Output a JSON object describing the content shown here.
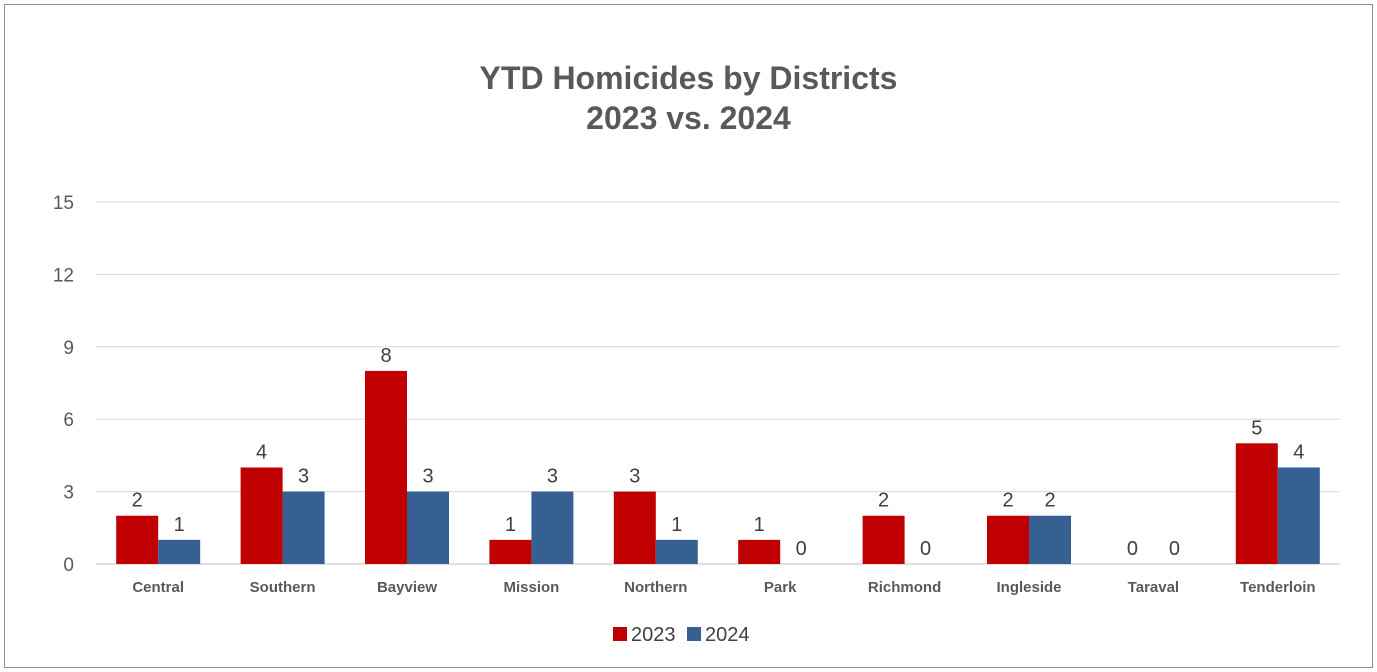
{
  "chart_data": {
    "type": "bar",
    "title": [
      "YTD Homicides by Districts",
      "2023 vs. 2024"
    ],
    "xlabel": "",
    "ylabel": "",
    "ylim": [
      0,
      15
    ],
    "yticks": [
      0,
      3,
      6,
      9,
      12,
      15
    ],
    "grid": true,
    "legend": "bottom",
    "categories": [
      "Central",
      "Southern",
      "Bayview",
      "Mission",
      "Northern",
      "Park",
      "Richmond",
      "Ingleside",
      "Taraval",
      "Tenderloin"
    ],
    "series": [
      {
        "name": "2023",
        "color": "#c00000",
        "values": [
          2,
          4,
          8,
          1,
          3,
          1,
          2,
          2,
          0,
          5
        ]
      },
      {
        "name": "2024",
        "color": "#376092",
        "values": [
          1,
          3,
          3,
          3,
          1,
          0,
          0,
          2,
          0,
          4
        ]
      }
    ]
  }
}
